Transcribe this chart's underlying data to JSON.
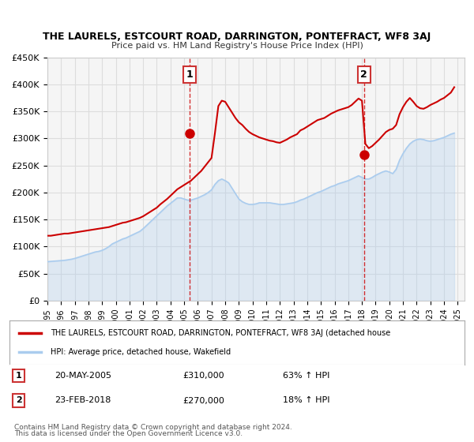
{
  "title": "THE LAURELS, ESTCOURT ROAD, DARRINGTON, PONTEFRACT, WF8 3AJ",
  "subtitle": "Price paid vs. HM Land Registry's House Price Index (HPI)",
  "xlabel": "",
  "ylabel": "",
  "ylim": [
    0,
    450000
  ],
  "xlim_start": 1995.0,
  "xlim_end": 2025.5,
  "yticks": [
    0,
    50000,
    100000,
    150000,
    200000,
    250000,
    300000,
    350000,
    400000,
    450000
  ],
  "ytick_labels": [
    "£0",
    "£50K",
    "£100K",
    "£150K",
    "£200K",
    "£250K",
    "£300K",
    "£350K",
    "£400K",
    "£450K"
  ],
  "xticks": [
    1995,
    1996,
    1997,
    1998,
    1999,
    2000,
    2001,
    2002,
    2003,
    2004,
    2005,
    2006,
    2007,
    2008,
    2009,
    2010,
    2011,
    2012,
    2013,
    2014,
    2015,
    2016,
    2017,
    2018,
    2019,
    2020,
    2021,
    2022,
    2023,
    2024,
    2025
  ],
  "sale1_x": 2005.38,
  "sale1_y": 310000,
  "sale1_label": "1",
  "sale1_date": "20-MAY-2005",
  "sale1_price": "£310,000",
  "sale1_hpi": "63% ↑ HPI",
  "sale2_x": 2018.15,
  "sale2_y": 270000,
  "sale2_label": "2",
  "sale2_date": "23-FEB-2018",
  "sale2_price": "£270,000",
  "sale2_hpi": "18% ↑ HPI",
  "red_line_color": "#cc0000",
  "blue_line_color": "#aaccee",
  "grid_color": "#dddddd",
  "background_color": "#ffffff",
  "plot_bg_color": "#f5f5f5",
  "legend_line1": "THE LAURELS, ESTCOURT ROAD, DARRINGTON, PONTEFRACT, WF8 3AJ (detached house",
  "legend_line2": "HPI: Average price, detached house, Wakefield",
  "footer1": "Contains HM Land Registry data © Crown copyright and database right 2024.",
  "footer2": "This data is licensed under the Open Government Licence v3.0.",
  "hpi_data_x": [
    1995.0,
    1995.25,
    1995.5,
    1995.75,
    1996.0,
    1996.25,
    1996.5,
    1996.75,
    1997.0,
    1997.25,
    1997.5,
    1997.75,
    1998.0,
    1998.25,
    1998.5,
    1998.75,
    1999.0,
    1999.25,
    1999.5,
    1999.75,
    2000.0,
    2000.25,
    2000.5,
    2000.75,
    2001.0,
    2001.25,
    2001.5,
    2001.75,
    2002.0,
    2002.25,
    2002.5,
    2002.75,
    2003.0,
    2003.25,
    2003.5,
    2003.75,
    2004.0,
    2004.25,
    2004.5,
    2004.75,
    2005.0,
    2005.25,
    2005.5,
    2005.75,
    2006.0,
    2006.25,
    2006.5,
    2006.75,
    2007.0,
    2007.25,
    2007.5,
    2007.75,
    2008.0,
    2008.25,
    2008.5,
    2008.75,
    2009.0,
    2009.25,
    2009.5,
    2009.75,
    2010.0,
    2010.25,
    2010.5,
    2010.75,
    2011.0,
    2011.25,
    2011.5,
    2011.75,
    2012.0,
    2012.25,
    2012.5,
    2012.75,
    2013.0,
    2013.25,
    2013.5,
    2013.75,
    2014.0,
    2014.25,
    2014.5,
    2014.75,
    2015.0,
    2015.25,
    2015.5,
    2015.75,
    2016.0,
    2016.25,
    2016.5,
    2016.75,
    2017.0,
    2017.25,
    2017.5,
    2017.75,
    2018.0,
    2018.25,
    2018.5,
    2018.75,
    2019.0,
    2019.25,
    2019.5,
    2019.75,
    2020.0,
    2020.25,
    2020.5,
    2020.75,
    2021.0,
    2021.25,
    2021.5,
    2021.75,
    2022.0,
    2022.25,
    2022.5,
    2022.75,
    2023.0,
    2023.25,
    2023.5,
    2023.75,
    2024.0,
    2024.25,
    2024.5,
    2024.75
  ],
  "hpi_data_y": [
    72000,
    72500,
    73000,
    73500,
    74000,
    74500,
    75500,
    76500,
    78000,
    80000,
    82000,
    84000,
    86000,
    88000,
    90000,
    91000,
    93000,
    96000,
    100000,
    105000,
    108000,
    111000,
    114000,
    116000,
    119000,
    122000,
    125000,
    128000,
    133000,
    139000,
    145000,
    151000,
    157000,
    163000,
    169000,
    175000,
    180000,
    185000,
    190000,
    190000,
    188000,
    186000,
    186000,
    188000,
    190000,
    193000,
    196000,
    200000,
    205000,
    215000,
    222000,
    225000,
    222000,
    218000,
    208000,
    198000,
    188000,
    183000,
    180000,
    178000,
    178000,
    179000,
    181000,
    181000,
    181000,
    181000,
    180000,
    179000,
    178000,
    178000,
    179000,
    180000,
    181000,
    183000,
    186000,
    188000,
    191000,
    194000,
    197000,
    200000,
    202000,
    205000,
    208000,
    211000,
    213000,
    216000,
    218000,
    220000,
    222000,
    225000,
    228000,
    231000,
    228000,
    225000,
    225000,
    228000,
    232000,
    235000,
    238000,
    240000,
    238000,
    235000,
    243000,
    260000,
    272000,
    282000,
    290000,
    295000,
    298000,
    299000,
    298000,
    296000,
    295000,
    296000,
    298000,
    300000,
    302000,
    305000,
    308000,
    310000
  ],
  "price_data_x": [
    1995.0,
    1995.25,
    1995.5,
    1995.75,
    1996.0,
    1996.25,
    1996.5,
    1996.75,
    1997.0,
    1997.25,
    1997.5,
    1997.75,
    1998.0,
    1998.25,
    1998.5,
    1998.75,
    1999.0,
    1999.25,
    1999.5,
    1999.75,
    2000.0,
    2000.25,
    2000.5,
    2000.75,
    2001.0,
    2001.25,
    2001.5,
    2001.75,
    2002.0,
    2002.25,
    2002.5,
    2002.75,
    2003.0,
    2003.25,
    2003.5,
    2003.75,
    2004.0,
    2004.25,
    2004.5,
    2004.75,
    2005.0,
    2005.25,
    2005.5,
    2005.75,
    2006.0,
    2006.25,
    2006.5,
    2006.75,
    2007.0,
    2007.25,
    2007.5,
    2007.75,
    2008.0,
    2008.25,
    2008.5,
    2008.75,
    2009.0,
    2009.25,
    2009.5,
    2009.75,
    2010.0,
    2010.25,
    2010.5,
    2010.75,
    2011.0,
    2011.25,
    2011.5,
    2011.75,
    2012.0,
    2012.25,
    2012.5,
    2012.75,
    2013.0,
    2013.25,
    2013.5,
    2013.75,
    2014.0,
    2014.25,
    2014.5,
    2014.75,
    2015.0,
    2015.25,
    2015.5,
    2015.75,
    2016.0,
    2016.25,
    2016.5,
    2016.75,
    2017.0,
    2017.25,
    2017.5,
    2017.75,
    2018.0,
    2018.25,
    2018.5,
    2018.75,
    2019.0,
    2019.25,
    2019.5,
    2019.75,
    2020.0,
    2020.25,
    2020.5,
    2020.75,
    2021.0,
    2021.25,
    2021.5,
    2021.75,
    2022.0,
    2022.25,
    2022.5,
    2022.75,
    2023.0,
    2023.25,
    2023.5,
    2023.75,
    2024.0,
    2024.25,
    2024.5,
    2024.75
  ],
  "price_data_y": [
    120000,
    120000,
    121000,
    122000,
    123000,
    124000,
    124000,
    125000,
    126000,
    127000,
    128000,
    129000,
    130000,
    131000,
    132000,
    133000,
    134000,
    135000,
    136000,
    138000,
    140000,
    142000,
    144000,
    145000,
    147000,
    149000,
    151000,
    153000,
    156000,
    160000,
    164000,
    168000,
    172000,
    178000,
    183000,
    188000,
    194000,
    200000,
    206000,
    210000,
    214000,
    218000,
    222000,
    228000,
    234000,
    240000,
    248000,
    256000,
    264000,
    310000,
    360000,
    370000,
    368000,
    358000,
    348000,
    338000,
    330000,
    325000,
    318000,
    312000,
    308000,
    305000,
    302000,
    300000,
    298000,
    296000,
    295000,
    293000,
    292000,
    295000,
    298000,
    302000,
    305000,
    308000,
    315000,
    318000,
    322000,
    326000,
    330000,
    334000,
    336000,
    338000,
    342000,
    346000,
    349000,
    352000,
    354000,
    356000,
    358000,
    362000,
    368000,
    374000,
    370000,
    290000,
    282000,
    286000,
    292000,
    298000,
    305000,
    312000,
    316000,
    318000,
    325000,
    345000,
    358000,
    368000,
    375000,
    368000,
    360000,
    356000,
    355000,
    358000,
    362000,
    365000,
    368000,
    372000,
    375000,
    380000,
    385000,
    395000
  ]
}
